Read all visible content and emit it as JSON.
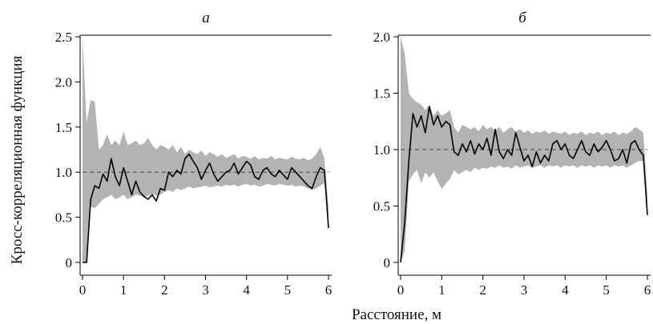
{
  "figure": {
    "ylabel": "Кросс-корреляционная функция",
    "xlabel": "Расстояние, м"
  },
  "colors": {
    "band": "#b3b3b3",
    "line": "#000000",
    "reference": "#444444"
  },
  "chart_data": [
    {
      "type": "line",
      "title": "а",
      "xlim": [
        0,
        6
      ],
      "ylim": [
        0,
        2.5
      ],
      "xticks": [
        "0",
        "1",
        "2",
        "3",
        "4",
        "5",
        "6"
      ],
      "yticks": [
        "0",
        "0.5",
        "1.0",
        "1.5",
        "2.0",
        "2.5"
      ],
      "reference_y": 1.0,
      "x": [
        0.0,
        0.1,
        0.2,
        0.3,
        0.4,
        0.5,
        0.6,
        0.7,
        0.8,
        0.9,
        1.0,
        1.1,
        1.2,
        1.3,
        1.4,
        1.5,
        1.6,
        1.7,
        1.8,
        1.9,
        2.0,
        2.1,
        2.2,
        2.3,
        2.4,
        2.5,
        2.6,
        2.7,
        2.8,
        2.9,
        3.0,
        3.1,
        3.2,
        3.3,
        3.4,
        3.5,
        3.6,
        3.7,
        3.8,
        3.9,
        4.0,
        4.1,
        4.2,
        4.3,
        4.4,
        4.5,
        4.6,
        4.7,
        4.8,
        4.9,
        5.0,
        5.1,
        5.2,
        5.3,
        5.4,
        5.5,
        5.6,
        5.7,
        5.8,
        5.9,
        6.0
      ],
      "y": [
        0.0,
        0.0,
        0.7,
        0.85,
        0.82,
        0.98,
        0.9,
        1.15,
        0.95,
        0.85,
        1.05,
        0.9,
        0.75,
        0.9,
        0.78,
        0.73,
        0.7,
        0.75,
        0.68,
        0.82,
        0.8,
        1.0,
        0.95,
        1.02,
        0.98,
        1.15,
        1.2,
        1.12,
        1.05,
        0.92,
        1.02,
        1.1,
        0.98,
        0.9,
        0.95,
        1.0,
        1.02,
        1.1,
        0.98,
        1.05,
        1.12,
        1.08,
        0.95,
        0.92,
        1.02,
        1.05,
        0.98,
        0.95,
        1.02,
        0.97,
        0.92,
        1.05,
        1.0,
        0.95,
        0.9,
        0.85,
        0.82,
        0.95,
        1.05,
        1.02,
        0.38
      ],
      "band_low": [
        0.0,
        0.0,
        0.62,
        0.6,
        0.65,
        0.7,
        0.72,
        0.75,
        0.7,
        0.72,
        0.75,
        0.7,
        0.72,
        0.75,
        0.74,
        0.72,
        0.74,
        0.76,
        0.74,
        0.75,
        0.78,
        0.8,
        0.78,
        0.82,
        0.8,
        0.82,
        0.84,
        0.82,
        0.83,
        0.84,
        0.85,
        0.83,
        0.84,
        0.85,
        0.84,
        0.86,
        0.85,
        0.86,
        0.84,
        0.86,
        0.87,
        0.85,
        0.86,
        0.84,
        0.85,
        0.87,
        0.86,
        0.85,
        0.87,
        0.86,
        0.85,
        0.86,
        0.84,
        0.85,
        0.84,
        0.82,
        0.8,
        0.82,
        0.85,
        0.88,
        0.45
      ],
      "band_high": [
        2.5,
        1.55,
        1.8,
        1.78,
        1.25,
        1.3,
        1.42,
        1.3,
        1.35,
        1.3,
        1.45,
        1.3,
        1.32,
        1.35,
        1.3,
        1.32,
        1.38,
        1.3,
        1.25,
        1.3,
        1.28,
        1.25,
        1.3,
        1.22,
        1.28,
        1.2,
        1.25,
        1.22,
        1.2,
        1.24,
        1.18,
        1.22,
        1.2,
        1.17,
        1.2,
        1.16,
        1.18,
        1.2,
        1.15,
        1.18,
        1.17,
        1.15,
        1.18,
        1.14,
        1.16,
        1.15,
        1.18,
        1.14,
        1.16,
        1.15,
        1.14,
        1.17,
        1.15,
        1.14,
        1.16,
        1.13,
        1.15,
        1.2,
        1.28,
        1.15,
        0.6
      ]
    },
    {
      "type": "line",
      "title": "б",
      "xlim": [
        0,
        6
      ],
      "ylim": [
        0,
        2.0
      ],
      "xticks": [
        "0",
        "1",
        "2",
        "3",
        "4",
        "5",
        "6"
      ],
      "yticks": [
        "0",
        "0.5",
        "1.0",
        "1.5",
        "2.0"
      ],
      "reference_y": 1.0,
      "x": [
        0.0,
        0.1,
        0.2,
        0.3,
        0.4,
        0.5,
        0.6,
        0.7,
        0.8,
        0.9,
        1.0,
        1.1,
        1.2,
        1.3,
        1.4,
        1.5,
        1.6,
        1.7,
        1.8,
        1.9,
        2.0,
        2.1,
        2.2,
        2.3,
        2.4,
        2.5,
        2.6,
        2.7,
        2.8,
        2.9,
        3.0,
        3.1,
        3.2,
        3.3,
        3.4,
        3.5,
        3.6,
        3.7,
        3.8,
        3.9,
        4.0,
        4.1,
        4.2,
        4.3,
        4.4,
        4.5,
        4.6,
        4.7,
        4.8,
        4.9,
        5.0,
        5.1,
        5.2,
        5.3,
        5.4,
        5.5,
        5.6,
        5.7,
        5.8,
        5.9,
        6.0
      ],
      "y": [
        0.0,
        0.35,
        0.9,
        1.32,
        1.2,
        1.3,
        1.15,
        1.38,
        1.22,
        1.3,
        1.2,
        1.25,
        1.22,
        0.98,
        0.95,
        1.05,
        0.98,
        1.08,
        0.96,
        1.05,
        1.0,
        1.1,
        0.95,
        1.18,
        0.98,
        0.92,
        1.0,
        0.95,
        1.15,
        1.02,
        0.9,
        0.95,
        0.85,
        0.98,
        0.88,
        0.95,
        0.9,
        1.05,
        1.08,
        1.0,
        1.05,
        0.95,
        0.92,
        1.0,
        1.08,
        0.98,
        0.95,
        1.05,
        0.98,
        1.02,
        1.08,
        1.0,
        0.9,
        0.92,
        1.0,
        0.88,
        1.05,
        1.08,
        1.0,
        0.95,
        0.42
      ],
      "band_low": [
        0.0,
        0.1,
        0.72,
        0.78,
        0.82,
        0.7,
        0.8,
        0.75,
        0.8,
        0.72,
        0.65,
        0.7,
        0.74,
        0.82,
        0.78,
        0.8,
        0.82,
        0.8,
        0.84,
        0.82,
        0.84,
        0.83,
        0.85,
        0.84,
        0.86,
        0.84,
        0.85,
        0.83,
        0.86,
        0.84,
        0.85,
        0.86,
        0.84,
        0.85,
        0.86,
        0.84,
        0.86,
        0.85,
        0.86,
        0.84,
        0.86,
        0.85,
        0.86,
        0.84,
        0.86,
        0.85,
        0.86,
        0.84,
        0.86,
        0.85,
        0.86,
        0.84,
        0.86,
        0.85,
        0.86,
        0.84,
        0.86,
        0.88,
        0.9,
        0.9,
        0.45
      ],
      "band_high": [
        2.0,
        1.85,
        1.5,
        1.45,
        1.42,
        1.4,
        1.35,
        1.4,
        1.3,
        1.35,
        1.3,
        1.32,
        1.35,
        1.2,
        1.15,
        1.22,
        1.2,
        1.18,
        1.2,
        1.16,
        1.22,
        1.18,
        1.2,
        1.17,
        1.2,
        1.15,
        1.18,
        1.2,
        1.16,
        1.18,
        1.15,
        1.17,
        1.14,
        1.16,
        1.15,
        1.17,
        1.14,
        1.16,
        1.15,
        1.14,
        1.16,
        1.13,
        1.15,
        1.14,
        1.16,
        1.13,
        1.15,
        1.14,
        1.16,
        1.13,
        1.15,
        1.14,
        1.16,
        1.13,
        1.15,
        1.14,
        1.16,
        1.2,
        1.18,
        1.15,
        0.6
      ]
    }
  ]
}
